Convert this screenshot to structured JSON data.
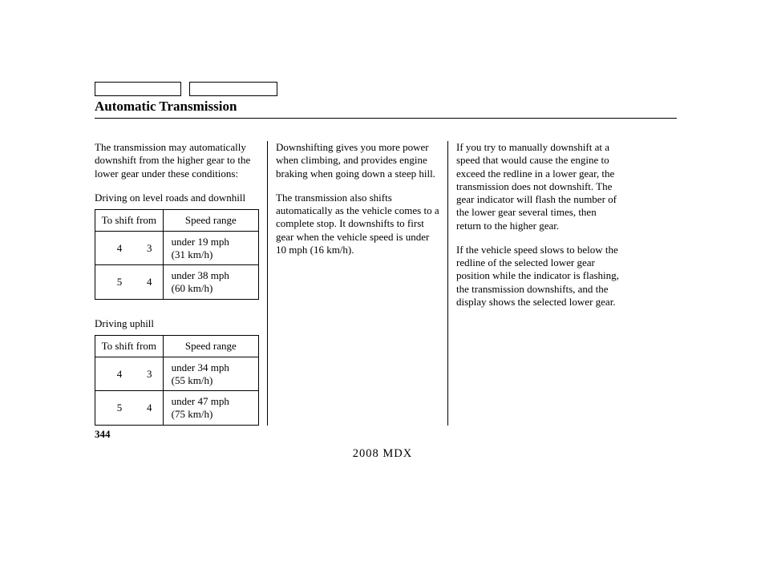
{
  "title": "Automatic Transmission",
  "col1": {
    "intro": "The transmission may automatically downshift from the higher gear to the lower gear under these conditions:",
    "level_label": "Driving on level roads and downhill",
    "uphill_label": "Driving uphill",
    "headers": {
      "from": "To shift from",
      "range": "Speed range"
    },
    "level_rows": [
      {
        "g1": "4",
        "g2": "3",
        "r1": "under 19 mph",
        "r2": "(31 km/h)"
      },
      {
        "g1": "5",
        "g2": "4",
        "r1": "under 38 mph",
        "r2": "(60 km/h)"
      }
    ],
    "uphill_rows": [
      {
        "g1": "4",
        "g2": "3",
        "r1": "under 34 mph",
        "r2": "(55 km/h)"
      },
      {
        "g1": "5",
        "g2": "4",
        "r1": "under 47 mph",
        "r2": "(75 km/h)"
      }
    ]
  },
  "col2": {
    "p1": "Downshifting gives you more power when climbing, and provides engine braking when going down a steep hill.",
    "p2": "The transmission also shifts automatically as the vehicle comes to a complete stop. It downshifts to first gear when the vehicle speed is under 10 mph (16 km/h)."
  },
  "col3": {
    "p1": "If you try to manually downshift at a speed that would cause the engine to exceed the redline in a lower gear, the transmission does not downshift. The gear indicator will flash the number of the lower gear several times, then return to the higher gear.",
    "p2": "If the vehicle speed slows to below the redline of the selected lower gear position while the indicator is flashing, the transmission downshifts, and the display shows the selected lower gear."
  },
  "page_number": "344",
  "footer": "2008  MDX"
}
